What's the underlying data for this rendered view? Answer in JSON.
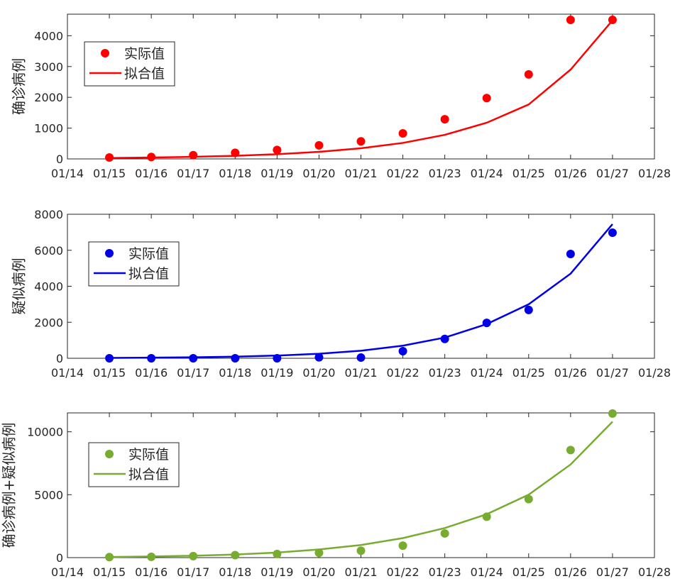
{
  "chart_data": [
    {
      "type": "line",
      "x": [
        "01/15",
        "01/16",
        "01/17",
        "01/18",
        "01/19",
        "01/20",
        "01/21",
        "01/22",
        "01/23",
        "01/24",
        "01/25",
        "01/26",
        "01/27"
      ],
      "x_ticks": [
        "01/14",
        "01/15",
        "01/16",
        "01/17",
        "01/18",
        "01/19",
        "01/20",
        "01/21",
        "01/22",
        "01/23",
        "01/24",
        "01/25",
        "01/26",
        "01/27",
        "01/28"
      ],
      "ylabel": "确诊病例",
      "ylim": [
        0,
        4700
      ],
      "y_ticks": [
        0,
        1000,
        2000,
        3000,
        4000
      ],
      "y_tick_labels": [
        "0",
        "1000",
        "2000",
        "3000",
        "4000"
      ],
      "color": "#ff0000",
      "legend_position": "top-left",
      "series": [
        {
          "name": "实际值",
          "kind": "scatter",
          "values": [
            45,
            62,
            121,
            198,
            291,
            440,
            571,
            830,
            1287,
            1975,
            2744,
            4515,
            4515
          ]
        },
        {
          "name": "拟合值",
          "kind": "line",
          "values": [
            30,
            45,
            68,
            102,
            153,
            230,
            346,
            520,
            782,
            1175,
            1767,
            2900,
            4500
          ]
        }
      ]
    },
    {
      "type": "line",
      "x": [
        "01/15",
        "01/16",
        "01/17",
        "01/18",
        "01/19",
        "01/20",
        "01/21",
        "01/22",
        "01/23",
        "01/24",
        "01/25",
        "01/26",
        "01/27"
      ],
      "x_ticks": [
        "01/14",
        "01/15",
        "01/16",
        "01/17",
        "01/18",
        "01/19",
        "01/20",
        "01/21",
        "01/22",
        "01/23",
        "01/24",
        "01/25",
        "01/26",
        "01/27",
        "01/28"
      ],
      "ylabel": "疑似病例",
      "ylim": [
        0,
        8000
      ],
      "y_ticks": [
        0,
        2000,
        4000,
        6000,
        8000
      ],
      "y_tick_labels": [
        "0",
        "2000",
        "4000",
        "6000",
        "8000"
      ],
      "color": "#0000e6",
      "legend_position": "top-left",
      "series": [
        {
          "name": "实际值",
          "kind": "scatter",
          "values": [
            0,
            0,
            0,
            0,
            0,
            54,
            37,
            393,
            1072,
            1965,
            2684,
            5794,
            6973
          ]
        },
        {
          "name": "拟合值",
          "kind": "line",
          "values": [
            20,
            33,
            55,
            90,
            150,
            250,
            420,
            700,
            1150,
            1900,
            3000,
            4700,
            7450
          ]
        }
      ]
    },
    {
      "type": "line",
      "x": [
        "01/15",
        "01/16",
        "01/17",
        "01/18",
        "01/19",
        "01/20",
        "01/21",
        "01/22",
        "01/23",
        "01/24",
        "01/25",
        "01/26",
        "01/27"
      ],
      "x_ticks": [
        "01/14",
        "01/15",
        "01/16",
        "01/17",
        "01/18",
        "01/19",
        "01/20",
        "01/21",
        "01/22",
        "01/23",
        "01/24",
        "01/25",
        "01/26",
        "01/27",
        "01/28"
      ],
      "ylabel": "确诊病例+疑似病例",
      "ylim": [
        0,
        11500
      ],
      "y_ticks": [
        0,
        5000,
        10000
      ],
      "y_tick_labels": [
        "0",
        "5000",
        "10000"
      ],
      "color": "#77ac30",
      "legend_position": "top-left",
      "series": [
        {
          "name": "实际值",
          "kind": "scatter",
          "values": [
            45,
            62,
            121,
            198,
            291,
            380,
            550,
            950,
            1920,
            3250,
            4650,
            8550,
            11450
          ]
        },
        {
          "name": "拟合值",
          "kind": "line",
          "values": [
            50,
            90,
            150,
            250,
            400,
            650,
            1000,
            1550,
            2350,
            3450,
            5000,
            7400,
            10800
          ]
        }
      ]
    }
  ]
}
